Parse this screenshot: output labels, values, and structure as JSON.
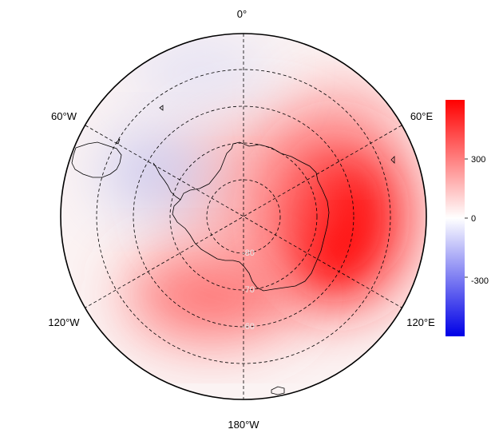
{
  "map": {
    "projection": "south-polar-stereographic",
    "longitude_labels": {
      "top": "0°",
      "upper_left": "60°W",
      "upper_right": "60°E",
      "lower_left": "120°W",
      "lower_right": "120°E",
      "bottom": "180°W"
    },
    "latitude_labels": [
      "-80",
      "-70",
      "-60"
    ],
    "colorbar": {
      "colormap": "blue-white-red",
      "range": [
        -600,
        600
      ],
      "ticks": [
        "300",
        "0",
        "-300"
      ],
      "tick_values": [
        300,
        0,
        -300
      ],
      "colors": {
        "high": "#ff0000",
        "mid": "#ffffff",
        "low": "#0000ff"
      }
    },
    "field_anomalies": [
      {
        "region": "east-antarctica-indian-ocean-sector",
        "value": 470
      },
      {
        "region": "pacific-sector-near-180",
        "value": 280
      },
      {
        "region": "weddell-sea-atlantic-sector",
        "value": -90
      }
    ]
  }
}
